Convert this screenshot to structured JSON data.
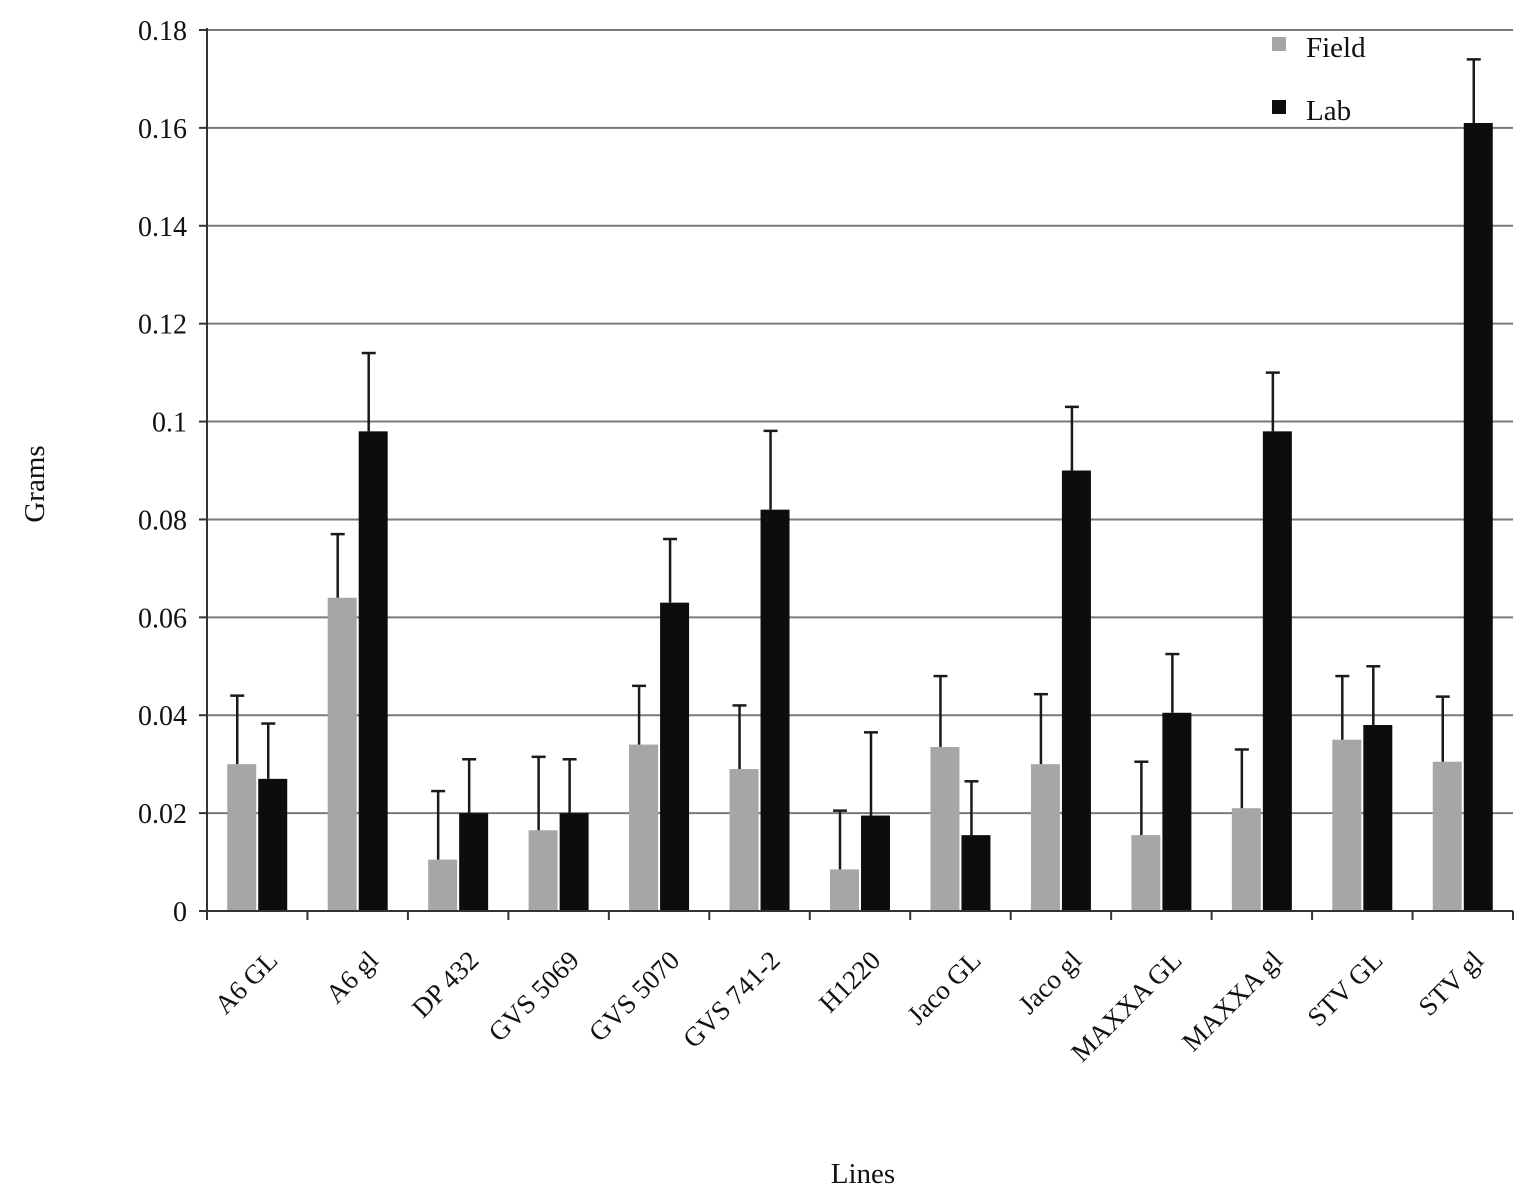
{
  "chart_data": {
    "type": "bar",
    "title": "",
    "xlabel": "Lines",
    "ylabel": "Grams",
    "ylim": [
      0,
      0.18
    ],
    "yticks": [
      "0",
      "0.02",
      "0.04",
      "0.06",
      "0.08",
      "0.1",
      "0.12",
      "0.14",
      "0.16",
      "0.18"
    ],
    "grid": true,
    "legend_position": "top-right",
    "categories": [
      "A6 GL",
      "A6 gl",
      "DP 432",
      "GVS 5069",
      "GVS 5070",
      "GVS 741-2",
      "H1220",
      "Jaco GL",
      "Jaco gl",
      "MAXXA GL",
      "MAXXA gl",
      "STV GL",
      "STV gl"
    ],
    "series": [
      {
        "name": "Field",
        "color": "#a6a6a6",
        "values": [
          0.03,
          0.064,
          0.0105,
          0.0165,
          0.034,
          0.029,
          0.0085,
          0.0335,
          0.03,
          0.0155,
          0.021,
          0.035,
          0.0305
        ],
        "errors": [
          0.014,
          0.013,
          0.014,
          0.015,
          0.012,
          0.013,
          0.012,
          0.0145,
          0.0143,
          0.015,
          0.012,
          0.013,
          0.0133
        ]
      },
      {
        "name": "Lab",
        "color": "#0d0d0d",
        "values": [
          0.027,
          0.098,
          0.02,
          0.02,
          0.063,
          0.082,
          0.0195,
          0.0155,
          0.09,
          0.0405,
          0.098,
          0.038,
          0.161
        ],
        "errors": [
          0.0113,
          0.016,
          0.011,
          0.011,
          0.013,
          0.0161,
          0.017,
          0.011,
          0.013,
          0.012,
          0.012,
          0.012,
          0.013
        ]
      }
    ]
  }
}
